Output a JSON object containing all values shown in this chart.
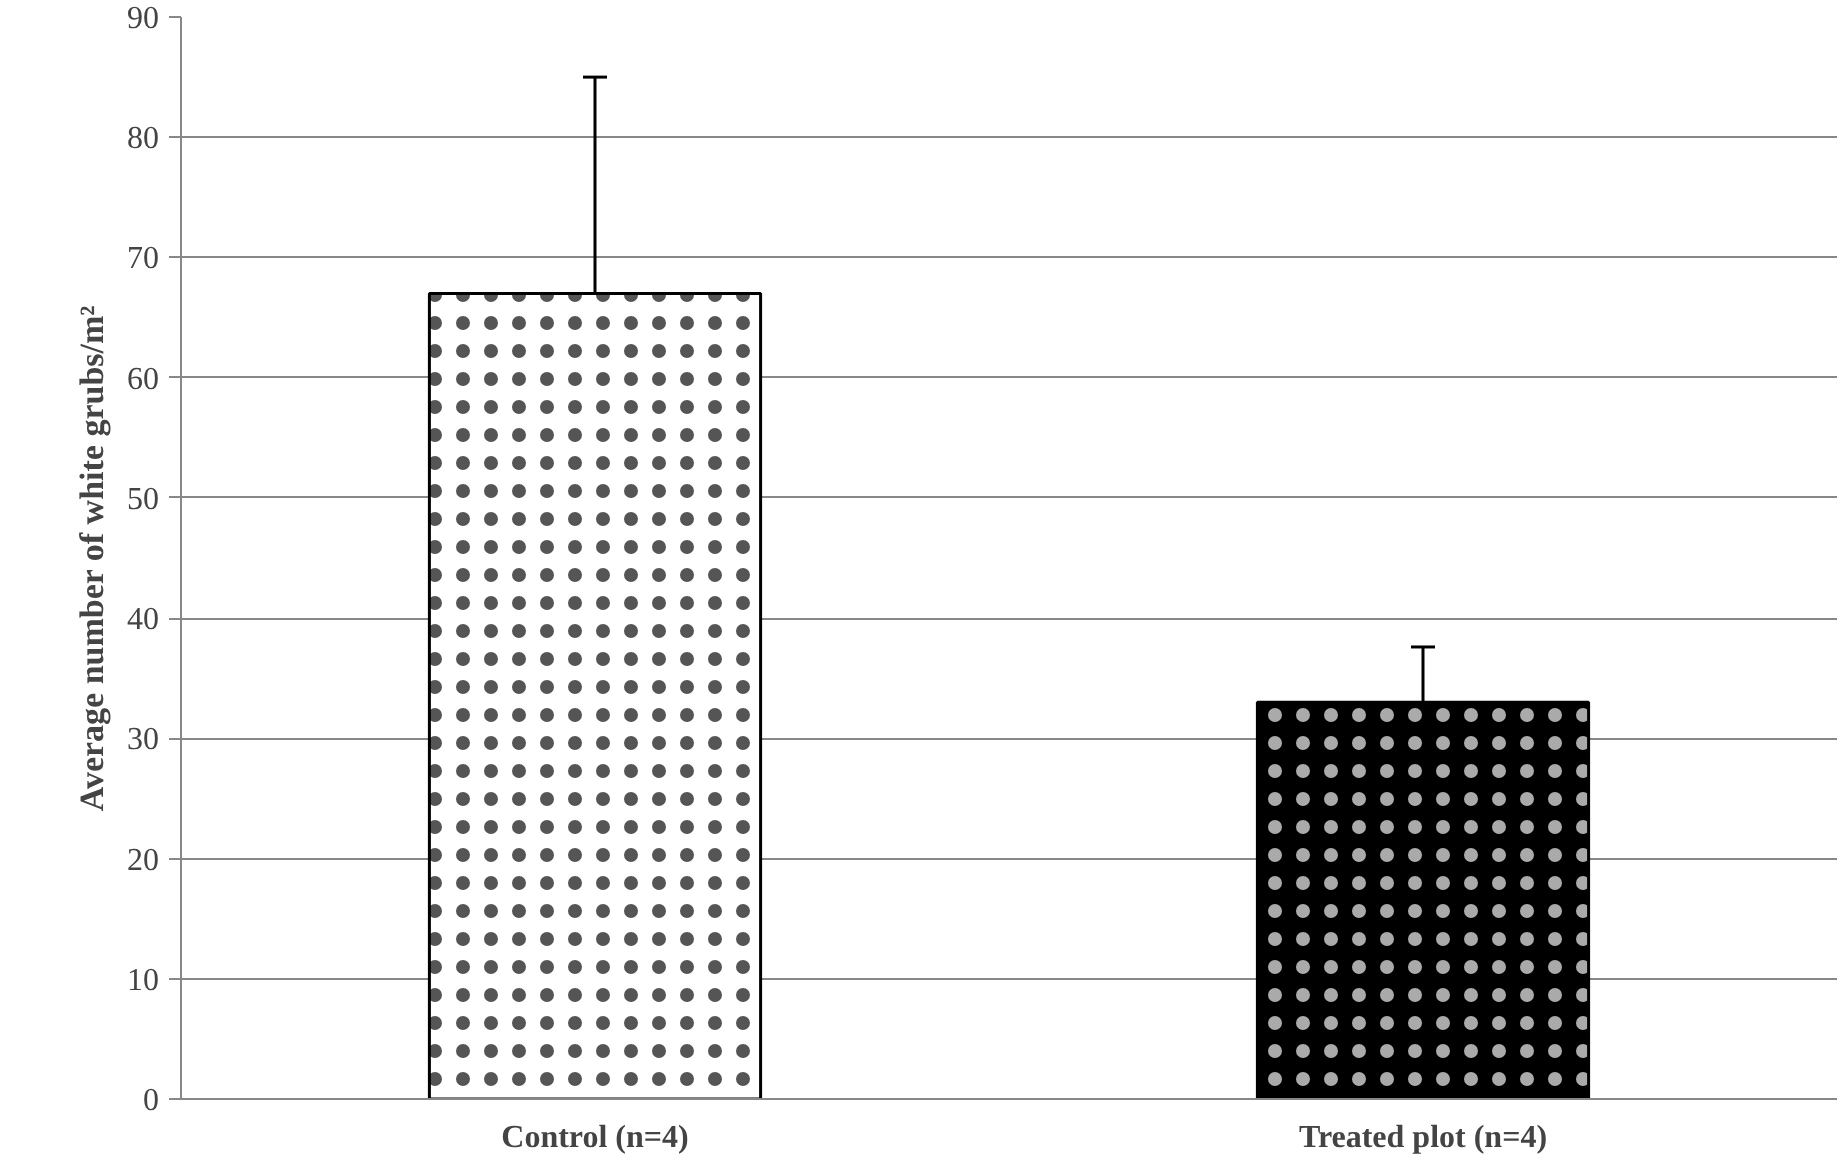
{
  "chart_data": {
    "type": "bar",
    "ylabel": "Average number of white grubs/m²",
    "categories": [
      "Control (n=4)",
      "Treated plot (n=4)"
    ],
    "values": [
      67,
      33
    ],
    "colors": [
      "#ffffff",
      "#000000"
    ],
    "errors": [
      18,
      4.6
    ],
    "ylim": [
      0,
      90
    ],
    "yticks": [
      0,
      10,
      20,
      30,
      40,
      50,
      60,
      70,
      80,
      90
    ],
    "grid": "y"
  }
}
